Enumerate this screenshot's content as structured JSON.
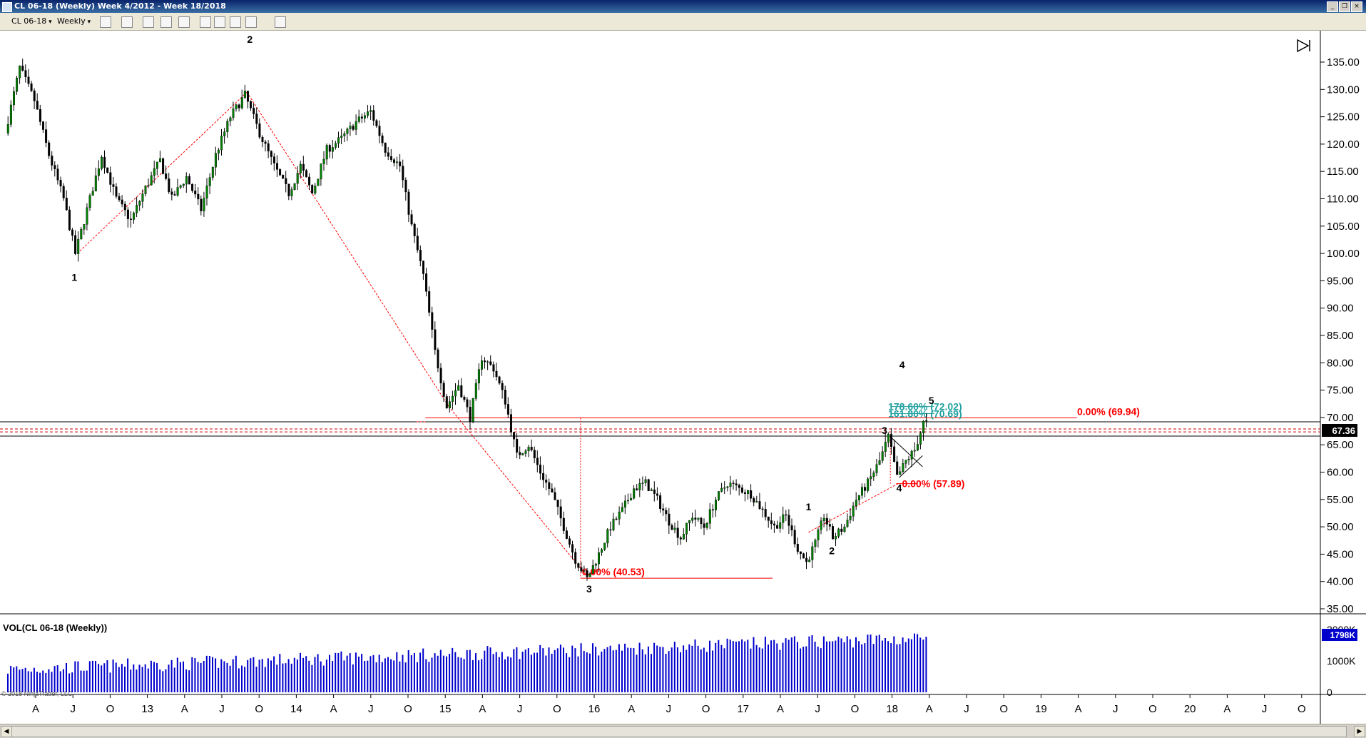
{
  "window": {
    "title": "CL 06-18 (Weekly)  Week 4/2012 - Week 18/2018"
  },
  "toolbar": {
    "instrument": "CL 06-18",
    "period": "Weekly"
  },
  "chart_data": {
    "type": "candlestick",
    "title": "",
    "price_axis": {
      "range": [
        35,
        135
      ],
      "ticks": [
        "135.00",
        "130.00",
        "125.00",
        "120.00",
        "115.00",
        "110.00",
        "105.00",
        "100.00",
        "95.00",
        "90.00",
        "85.00",
        "80.00",
        "75.00",
        "70.00",
        "65.00",
        "60.00",
        "55.00",
        "50.00",
        "45.00",
        "40.00",
        "35.00"
      ],
      "last_price": "67.36"
    },
    "time_axis": {
      "labels": [
        "A",
        "J",
        "O",
        "13",
        "A",
        "J",
        "O",
        "14",
        "A",
        "J",
        "O",
        "15",
        "A",
        "J",
        "O",
        "16",
        "A",
        "J",
        "O",
        "17",
        "A",
        "J",
        "O",
        "18",
        "A",
        "J",
        "O",
        "19",
        "A",
        "J",
        "O",
        "20",
        "A",
        "J",
        "O"
      ]
    },
    "price_path": [
      {
        "w": 0,
        "p": 122
      },
      {
        "w": 5,
        "p": 134
      },
      {
        "w": 10,
        "p": 128
      },
      {
        "w": 15,
        "p": 118
      },
      {
        "w": 20,
        "p": 110
      },
      {
        "w": 24,
        "p": 100
      },
      {
        "w": 28,
        "p": 108
      },
      {
        "w": 33,
        "p": 118
      },
      {
        "w": 38,
        "p": 110
      },
      {
        "w": 43,
        "p": 106
      },
      {
        "w": 48,
        "p": 112
      },
      {
        "w": 53,
        "p": 117
      },
      {
        "w": 57,
        "p": 110
      },
      {
        "w": 62,
        "p": 114
      },
      {
        "w": 67,
        "p": 108
      },
      {
        "w": 72,
        "p": 118
      },
      {
        "w": 77,
        "p": 125
      },
      {
        "w": 82,
        "p": 129
      },
      {
        "w": 87,
        "p": 122
      },
      {
        "w": 92,
        "p": 116
      },
      {
        "w": 97,
        "p": 111
      },
      {
        "w": 101,
        "p": 116
      },
      {
        "w": 105,
        "p": 111
      },
      {
        "w": 110,
        "p": 119
      },
      {
        "w": 115,
        "p": 121
      },
      {
        "w": 120,
        "p": 124
      },
      {
        "w": 125,
        "p": 126
      },
      {
        "w": 130,
        "p": 119
      },
      {
        "w": 135,
        "p": 116
      },
      {
        "w": 139,
        "p": 105
      },
      {
        "w": 143,
        "p": 96
      },
      {
        "w": 147,
        "p": 82
      },
      {
        "w": 151,
        "p": 72
      },
      {
        "w": 155,
        "p": 76
      },
      {
        "w": 159,
        "p": 70
      },
      {
        "w": 163,
        "p": 81
      },
      {
        "w": 167,
        "p": 79
      },
      {
        "w": 171,
        "p": 73
      },
      {
        "w": 175,
        "p": 63
      },
      {
        "w": 179,
        "p": 65
      },
      {
        "w": 183,
        "p": 60
      },
      {
        "w": 187,
        "p": 56
      },
      {
        "w": 191,
        "p": 50
      },
      {
        "w": 195,
        "p": 44
      },
      {
        "w": 199,
        "p": 40.5
      },
      {
        "w": 203,
        "p": 45
      },
      {
        "w": 207,
        "p": 50
      },
      {
        "w": 211,
        "p": 53
      },
      {
        "w": 215,
        "p": 57
      },
      {
        "w": 219,
        "p": 58
      },
      {
        "w": 223,
        "p": 55
      },
      {
        "w": 227,
        "p": 51
      },
      {
        "w": 231,
        "p": 48
      },
      {
        "w": 235,
        "p": 52
      },
      {
        "w": 239,
        "p": 50
      },
      {
        "w": 243,
        "p": 55
      },
      {
        "w": 247,
        "p": 58
      },
      {
        "w": 251,
        "p": 57
      },
      {
        "w": 255,
        "p": 56
      },
      {
        "w": 259,
        "p": 53
      },
      {
        "w": 263,
        "p": 50
      },
      {
        "w": 267,
        "p": 52
      },
      {
        "w": 271,
        "p": 46
      },
      {
        "w": 274,
        "p": 43.5
      },
      {
        "w": 277,
        "p": 47
      },
      {
        "w": 280,
        "p": 52
      },
      {
        "w": 283,
        "p": 48
      },
      {
        "w": 287,
        "p": 50
      },
      {
        "w": 291,
        "p": 55
      },
      {
        "w": 295,
        "p": 58
      },
      {
        "w": 299,
        "p": 62
      },
      {
        "w": 302,
        "p": 66.5
      },
      {
        "w": 305,
        "p": 59
      },
      {
        "w": 308,
        "p": 62
      },
      {
        "w": 311,
        "p": 64
      },
      {
        "w": 314,
        "p": 69
      }
    ],
    "annotations": [
      {
        "text": "1",
        "w": 23,
        "p": 95
      },
      {
        "text": "2",
        "w": 83,
        "p": 138.5
      },
      {
        "text": "3",
        "w": 199,
        "p": 38
      },
      {
        "text": "4",
        "w": 306,
        "p": 79
      },
      {
        "text": "1",
        "w": 274,
        "p": 53
      },
      {
        "text": "2",
        "w": 282,
        "p": 45
      },
      {
        "text": "3",
        "w": 300,
        "p": 67
      },
      {
        "text": "4",
        "w": 305,
        "p": 56.5
      },
      {
        "text": "5",
        "w": 316,
        "p": 72.5
      }
    ],
    "fib_levels": [
      {
        "text": "0.00% (69.94)",
        "color": "#ff0000"
      },
      {
        "text": "0.00% (57.89)",
        "color": "#ff0000"
      },
      {
        "text": "0.00% (40.53)",
        "color": "#ff0000"
      },
      {
        "text": "178.60% (72.02)",
        "color": "#20a0a0"
      },
      {
        "text": "161.80% (70.69)",
        "color": "#20a0a0"
      }
    ],
    "volume_panel": {
      "label": "VOL(CL 06-18 (Weekly))",
      "ticks": [
        "2000K",
        "1000K",
        "0"
      ],
      "last_value": "1798K",
      "range": [
        0,
        2100
      ]
    },
    "watermark": "© 2018 NinjaTrader, LLC",
    "colors": {
      "up": "#008000",
      "down": "#000000",
      "volume": "#0000cc",
      "fib": "#ff0000",
      "ext": "#20a0a0"
    }
  }
}
